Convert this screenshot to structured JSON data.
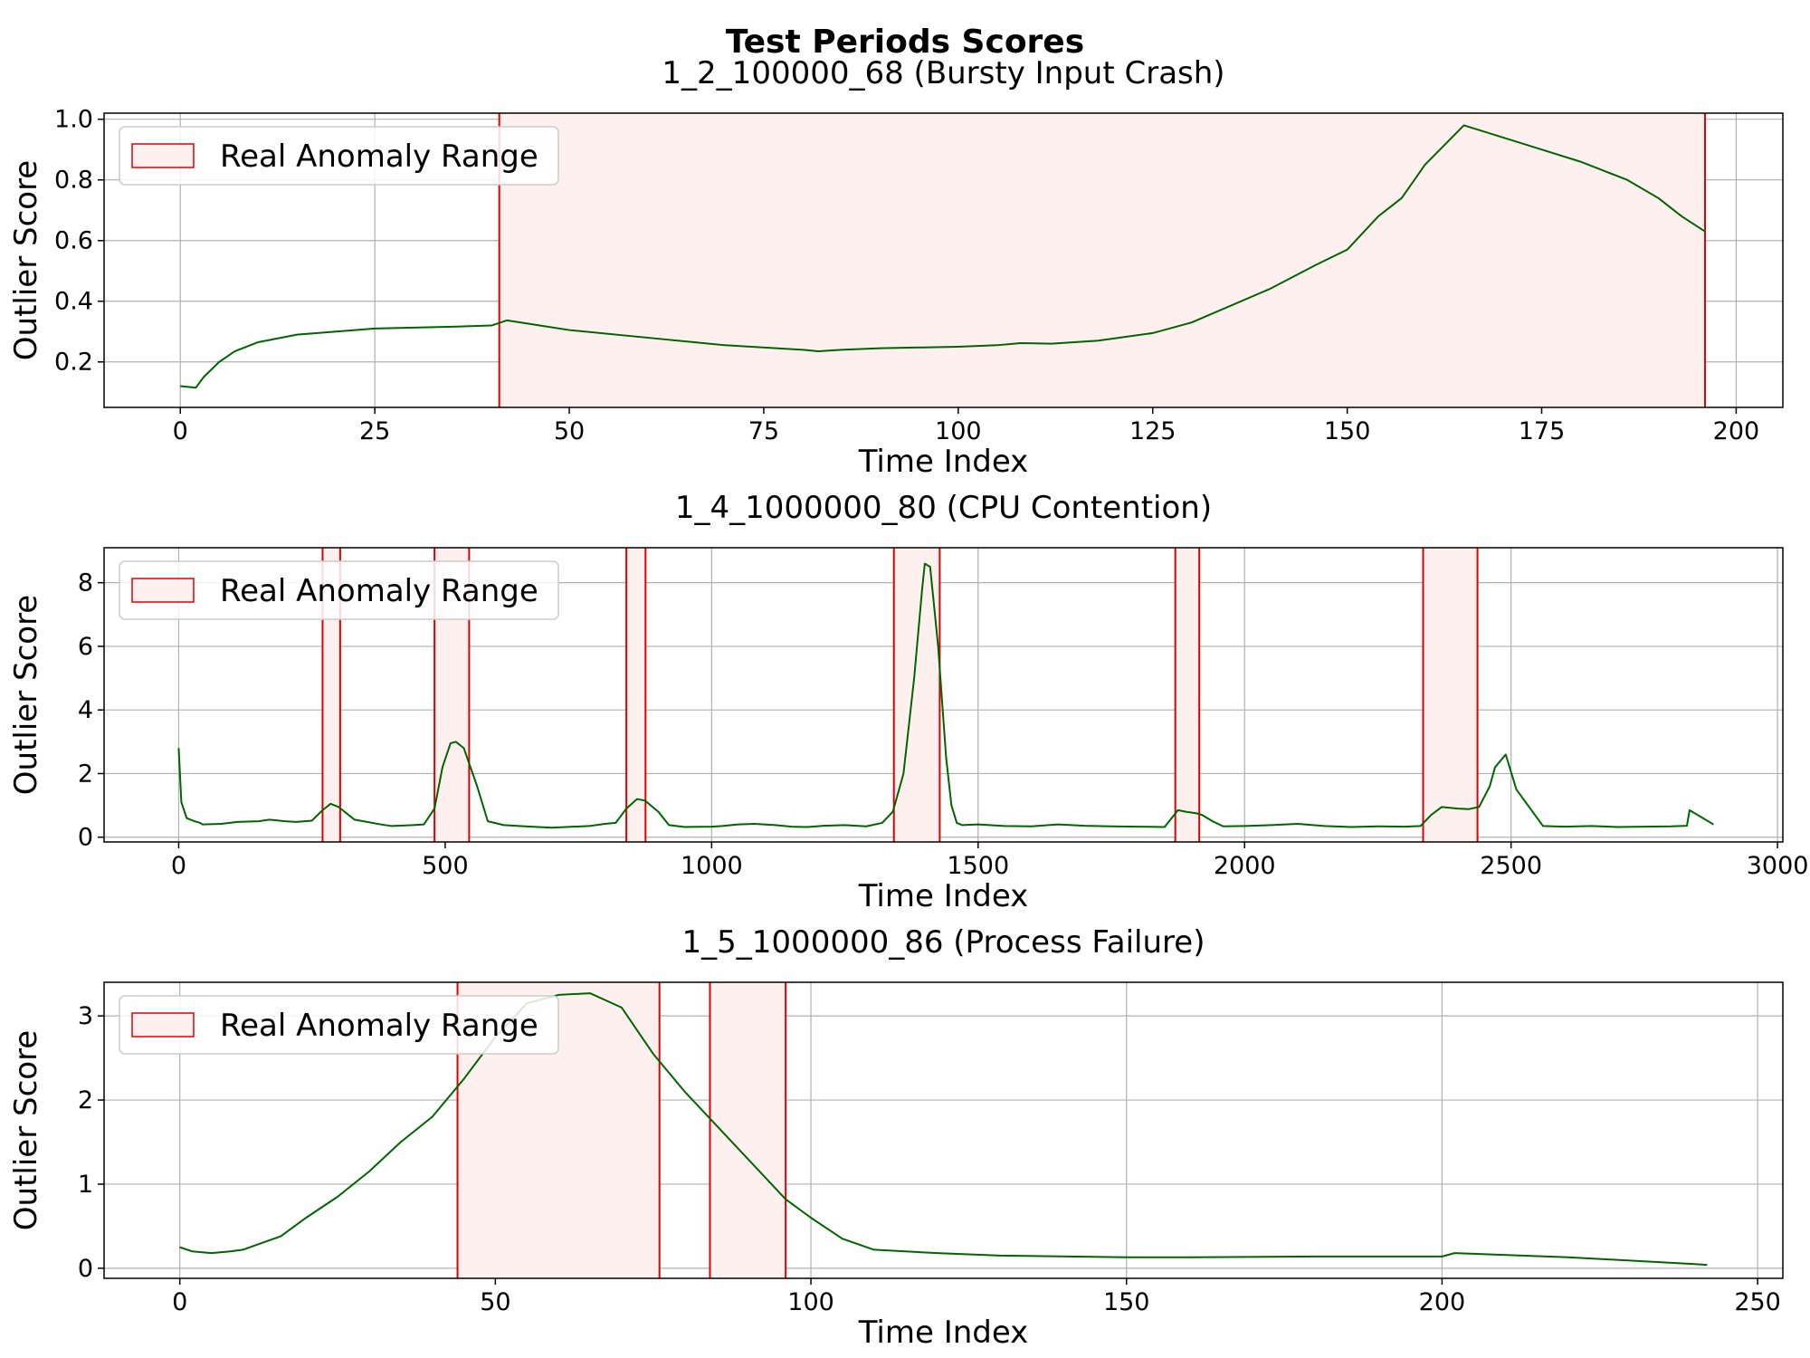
{
  "figure": {
    "title": "Test Periods Scores"
  },
  "colors": {
    "line": "#006400",
    "anomaly_edge": "#e00000",
    "anomaly_fill": "#fff0f0"
  },
  "chart_data": [
    {
      "type": "line",
      "title": "1_2_100000_68 (Bursty Input Crash)",
      "xlabel": "Time Index",
      "ylabel": "Outlier Score",
      "xlim": [
        -9.8,
        206
      ],
      "ylim": [
        0.05,
        1.02
      ],
      "xticks": [
        0,
        25,
        50,
        75,
        100,
        125,
        150,
        175,
        200
      ],
      "yticks": [
        0.2,
        0.4,
        0.6,
        0.8,
        1.0
      ],
      "ytick_labels": [
        "0.2",
        "0.4",
        "0.6",
        "0.8",
        "1.0"
      ],
      "grid": true,
      "legend": {
        "label": "Real Anomaly Range",
        "position": "upper-left"
      },
      "anomaly_ranges": [
        [
          41,
          196
        ]
      ],
      "series": [
        {
          "x": [
            0,
            2,
            3,
            5,
            7,
            10,
            15,
            20,
            25,
            30,
            35,
            40,
            42,
            45,
            50,
            60,
            70,
            80,
            82,
            85,
            90,
            100,
            105,
            108,
            112,
            118,
            125,
            130,
            140,
            146,
            150,
            154,
            157,
            160,
            165,
            170,
            175,
            180,
            186,
            190,
            193,
            196
          ],
          "y": [
            0.12,
            0.115,
            0.15,
            0.2,
            0.235,
            0.265,
            0.29,
            0.3,
            0.31,
            0.313,
            0.316,
            0.32,
            0.337,
            0.325,
            0.305,
            0.28,
            0.255,
            0.24,
            0.235,
            0.24,
            0.245,
            0.25,
            0.255,
            0.262,
            0.26,
            0.27,
            0.295,
            0.33,
            0.44,
            0.52,
            0.57,
            0.68,
            0.74,
            0.85,
            0.98,
            0.94,
            0.9,
            0.86,
            0.8,
            0.74,
            0.68,
            0.63
          ]
        }
      ]
    },
    {
      "type": "line",
      "title": "1_4_1000000_80 (CPU Contention)",
      "xlabel": "Time Index",
      "ylabel": "Outlier Score",
      "xlim": [
        -140,
        3010
      ],
      "ylim": [
        -0.15,
        9.1
      ],
      "xticks": [
        0,
        500,
        1000,
        1500,
        2000,
        2500,
        3000
      ],
      "yticks": [
        0,
        2,
        4,
        6,
        8
      ],
      "ytick_labels": [
        "0",
        "2",
        "4",
        "6",
        "8"
      ],
      "grid": true,
      "legend": {
        "label": "Real Anomaly Range",
        "position": "upper-left"
      },
      "anomaly_ranges": [
        [
          270,
          303
        ],
        [
          480,
          545
        ],
        [
          840,
          876
        ],
        [
          1342,
          1428
        ],
        [
          1870,
          1915
        ],
        [
          2335,
          2437
        ]
      ],
      "series": [
        {
          "x": [
            0,
            5,
            15,
            30,
            40,
            45,
            80,
            110,
            150,
            170,
            200,
            220,
            250,
            270,
            285,
            300,
            330,
            380,
            400,
            440,
            460,
            480,
            495,
            510,
            520,
            535,
            560,
            580,
            610,
            650,
            700,
            740,
            770,
            800,
            820,
            840,
            860,
            875,
            900,
            920,
            950,
            1000,
            1020,
            1050,
            1080,
            1120,
            1150,
            1180,
            1210,
            1250,
            1290,
            1320,
            1340,
            1360,
            1380,
            1395,
            1400,
            1410,
            1425,
            1440,
            1450,
            1460,
            1470,
            1500,
            1550,
            1600,
            1650,
            1700,
            1750,
            1800,
            1850,
            1875,
            1890,
            1910,
            1920,
            1940,
            1960,
            2000,
            2050,
            2100,
            2150,
            2200,
            2250,
            2300,
            2330,
            2350,
            2370,
            2400,
            2420,
            2440,
            2460,
            2470,
            2490,
            2510,
            2560,
            2600,
            2650,
            2700,
            2800,
            2830,
            2835,
            2880
          ],
          "y": [
            2.8,
            1.1,
            0.6,
            0.5,
            0.45,
            0.4,
            0.42,
            0.48,
            0.5,
            0.55,
            0.5,
            0.48,
            0.52,
            0.85,
            1.05,
            0.95,
            0.55,
            0.4,
            0.35,
            0.38,
            0.4,
            0.9,
            2.2,
            2.95,
            3.0,
            2.8,
            1.6,
            0.5,
            0.38,
            0.34,
            0.3,
            0.33,
            0.35,
            0.42,
            0.45,
            0.9,
            1.2,
            1.15,
            0.8,
            0.38,
            0.32,
            0.33,
            0.35,
            0.4,
            0.42,
            0.38,
            0.33,
            0.32,
            0.36,
            0.38,
            0.34,
            0.45,
            0.8,
            2.0,
            5.0,
            7.8,
            8.6,
            8.5,
            6.0,
            2.5,
            1.0,
            0.45,
            0.38,
            0.4,
            0.35,
            0.34,
            0.4,
            0.36,
            0.34,
            0.33,
            0.32,
            0.85,
            0.8,
            0.75,
            0.7,
            0.5,
            0.34,
            0.35,
            0.38,
            0.42,
            0.35,
            0.32,
            0.34,
            0.33,
            0.35,
            0.7,
            0.95,
            0.9,
            0.88,
            0.95,
            1.6,
            2.2,
            2.6,
            1.5,
            0.35,
            0.33,
            0.35,
            0.32,
            0.34,
            0.36,
            0.85,
            0.4
          ]
        }
      ]
    },
    {
      "type": "line",
      "title": "1_5_1000000_86 (Process Failure)",
      "xlabel": "Time Index",
      "ylabel": "Outlier Score",
      "xlim": [
        -12,
        254
      ],
      "ylim": [
        -0.12,
        3.4
      ],
      "xticks": [
        0,
        50,
        100,
        150,
        200,
        250
      ],
      "yticks": [
        0,
        1,
        2,
        3
      ],
      "ytick_labels": [
        "0",
        "1",
        "2",
        "3"
      ],
      "grid": true,
      "legend": {
        "label": "Real Anomaly Range",
        "position": "upper-left"
      },
      "anomaly_ranges": [
        [
          44,
          76
        ],
        [
          84,
          96
        ]
      ],
      "series": [
        {
          "x": [
            0,
            2,
            5,
            8,
            10,
            13,
            16,
            20,
            25,
            30,
            35,
            40,
            45,
            50,
            55,
            60,
            65,
            70,
            75,
            80,
            85,
            90,
            96,
            100,
            105,
            110,
            120,
            130,
            150,
            160,
            180,
            190,
            200,
            202,
            220,
            240,
            242
          ],
          "y": [
            0.25,
            0.2,
            0.18,
            0.2,
            0.22,
            0.3,
            0.38,
            0.6,
            0.85,
            1.15,
            1.5,
            1.8,
            2.25,
            2.75,
            3.15,
            3.25,
            3.27,
            3.1,
            2.55,
            2.1,
            1.7,
            1.3,
            0.82,
            0.6,
            0.35,
            0.22,
            0.18,
            0.15,
            0.13,
            0.13,
            0.14,
            0.14,
            0.14,
            0.18,
            0.13,
            0.05,
            0.04
          ]
        }
      ]
    }
  ]
}
